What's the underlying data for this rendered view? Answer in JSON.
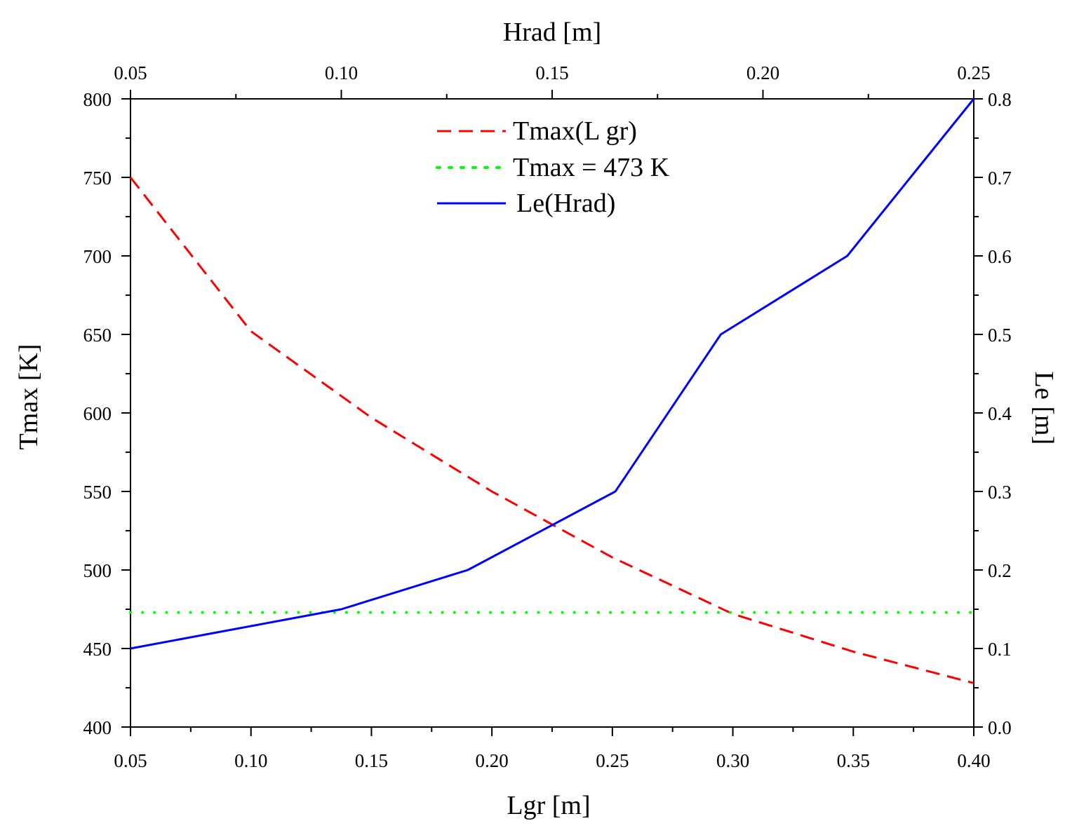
{
  "chart_data": {
    "type": "line",
    "axes": {
      "bottom": {
        "label": "Lgr [m]",
        "range": [
          0.05,
          0.4
        ],
        "ticks": [
          0.05,
          0.1,
          0.15,
          0.2,
          0.25,
          0.3,
          0.35,
          0.4
        ],
        "tick_labels": [
          "0.05",
          "0.10",
          "0.15",
          "0.20",
          "0.25",
          "0.30",
          "0.35",
          "0.40"
        ]
      },
      "top": {
        "label": "Hrad [m]",
        "range": [
          0.05,
          0.25
        ],
        "ticks": [
          0.05,
          0.1,
          0.15,
          0.2,
          0.25
        ],
        "tick_labels": [
          "0.05",
          "0.10",
          "0.15",
          "0.20",
          "0.25"
        ]
      },
      "left": {
        "label": "Tmax [K]",
        "range": [
          400,
          800
        ],
        "ticks": [
          400,
          450,
          500,
          550,
          600,
          650,
          700,
          750,
          800
        ],
        "tick_labels": [
          "400",
          "450",
          "500",
          "550",
          "600",
          "650",
          "700",
          "750",
          "800"
        ]
      },
      "right": {
        "label": "Le [m]",
        "range": [
          0.0,
          0.8
        ],
        "ticks": [
          0.0,
          0.1,
          0.2,
          0.3,
          0.4,
          0.5,
          0.6,
          0.7,
          0.8
        ],
        "tick_labels": [
          "0.0",
          "0.1",
          "0.2",
          "0.3",
          "0.4",
          "0.5",
          "0.6",
          "0.7",
          "0.8"
        ]
      }
    },
    "grid": false,
    "legend": {
      "position": "top-center"
    },
    "series": [
      {
        "name": "Tmax(L gr)",
        "x_axis": "bottom",
        "y_axis": "left",
        "style": "dashed",
        "color": "#ff0000",
        "x": [
          0.05,
          0.1,
          0.15,
          0.2,
          0.25,
          0.3,
          0.35,
          0.4
        ],
        "y": [
          750,
          652,
          597,
          550,
          508,
          472,
          448,
          428
        ]
      },
      {
        "name": "Tmax = 473 K",
        "x_axis": "bottom",
        "y_axis": "left",
        "style": "dotted",
        "color": "#00ff00",
        "x": [
          0.05,
          0.4
        ],
        "y": [
          473,
          473
        ]
      },
      {
        "name": "Le(Hrad)",
        "x_axis": "top",
        "y_axis": "right",
        "style": "solid",
        "color": "#0000ff",
        "x": [
          0.05,
          0.1,
          0.13,
          0.165,
          0.19,
          0.22,
          0.235,
          0.25
        ],
        "y": [
          0.1,
          0.15,
          0.2,
          0.3,
          0.5,
          0.6,
          0.7,
          0.8
        ]
      }
    ]
  }
}
